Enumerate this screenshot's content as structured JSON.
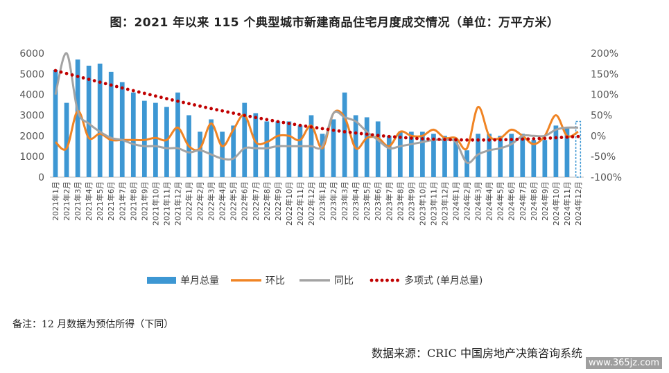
{
  "chart_data": {
    "type": "bar",
    "title": "图：2021 年以来 115 个典型城市新建商品住宅月度成交情况（单位：万平方米）",
    "categories": [
      "2021年1月",
      "2021年2月",
      "2021年3月",
      "2021年4月",
      "2021年5月",
      "2021年6月",
      "2021年7月",
      "2021年8月",
      "2021年9月",
      "2021年10月",
      "2021年11月",
      "2021年12月",
      "2022年1月",
      "2022年2月",
      "2022年3月",
      "2022年4月",
      "2022年5月",
      "2022年6月",
      "2022年7月",
      "2022年8月",
      "2022年9月",
      "2022年10月",
      "2022年11月",
      "2022年12月",
      "2023年1月",
      "2023年2月",
      "2023年3月",
      "2023年4月",
      "2023年5月",
      "2023年6月",
      "2023年7月",
      "2023年8月",
      "2023年9月",
      "2023年10月",
      "2023年11月",
      "2023年12月",
      "2024年1月",
      "2024年2月",
      "2024年3月",
      "2024年4月",
      "2024年5月",
      "2024年6月",
      "2024年7月",
      "2024年8月",
      "2024年9月",
      "2024年10月",
      "2024年11月",
      "2024年12月"
    ],
    "y_left_ticks": [
      "0",
      "1000",
      "2000",
      "3000",
      "4000",
      "5000",
      "6000"
    ],
    "y_right_ticks": [
      "-100%",
      "-50%",
      "0%",
      "50%",
      "100%",
      "150%",
      "200%"
    ],
    "ylim_left": [
      0,
      6000
    ],
    "ylim_right": [
      -100,
      200
    ],
    "series": [
      {
        "name": "单月总量",
        "axis": "left",
        "kind": "bar",
        "color": "#3d97d3",
        "values": [
          5200,
          3600,
          5700,
          5400,
          5500,
          5100,
          4600,
          4100,
          3700,
          3600,
          3400,
          4100,
          3000,
          2200,
          2800,
          2200,
          2500,
          3600,
          3100,
          2700,
          2700,
          2700,
          2500,
          3000,
          2100,
          2800,
          4100,
          3000,
          2900,
          2700,
          2000,
          2200,
          2200,
          2200,
          2100,
          2000,
          1900,
          1300,
          2100,
          2100,
          2000,
          2100,
          2100,
          1800,
          1800,
          2500,
          2400,
          2700
        ],
        "estimated_last": true
      },
      {
        "name": "环比",
        "axis": "right",
        "kind": "line",
        "color": "#f08424",
        "values": [
          -15,
          -30,
          60,
          -5,
          5,
          -10,
          -10,
          -10,
          -10,
          -5,
          -10,
          20,
          -25,
          -30,
          30,
          -25,
          15,
          50,
          -15,
          -15,
          0,
          0,
          -10,
          25,
          -30,
          55,
          45,
          -30,
          -5,
          -5,
          -25,
          10,
          0,
          0,
          15,
          -5,
          -5,
          -30,
          70,
          0,
          -5,
          15,
          0,
          -20,
          0,
          50,
          0,
          10
        ]
      },
      {
        "name": "同比",
        "axis": "right",
        "kind": "line",
        "color": "#a3a3a3",
        "values": [
          100,
          200,
          60,
          30,
          10,
          -5,
          -10,
          -20,
          -25,
          -25,
          -30,
          -30,
          -40,
          -35,
          -45,
          -55,
          -55,
          -30,
          -30,
          -30,
          -25,
          -25,
          -25,
          -25,
          -25,
          55,
          45,
          35,
          10,
          -10,
          -30,
          -25,
          -20,
          -15,
          -10,
          -10,
          -15,
          -65,
          -45,
          -35,
          -30,
          -20,
          0,
          0,
          0,
          15,
          20,
          20
        ]
      },
      {
        "name": "多项式 (单月总量)",
        "axis": "left",
        "kind": "trend",
        "color": "#c00000",
        "values": [
          5160,
          5020,
          4880,
          4740,
          4600,
          4460,
          4320,
          4190,
          4060,
          3930,
          3800,
          3680,
          3560,
          3440,
          3320,
          3210,
          3100,
          2990,
          2890,
          2790,
          2690,
          2600,
          2510,
          2430,
          2350,
          2270,
          2200,
          2140,
          2080,
          2020,
          1970,
          1930,
          1890,
          1860,
          1840,
          1820,
          1810,
          1800,
          1800,
          1800,
          1810,
          1820,
          1840,
          1860,
          1880,
          1910,
          1940,
          1970
        ]
      }
    ],
    "legend_position": "bottom",
    "grid": false
  },
  "note": "备注：12 月数据为预估所得（下同）",
  "source": "数据来源：CRIC 中国房地产决策咨询系统",
  "watermark": "www.365jz.com"
}
